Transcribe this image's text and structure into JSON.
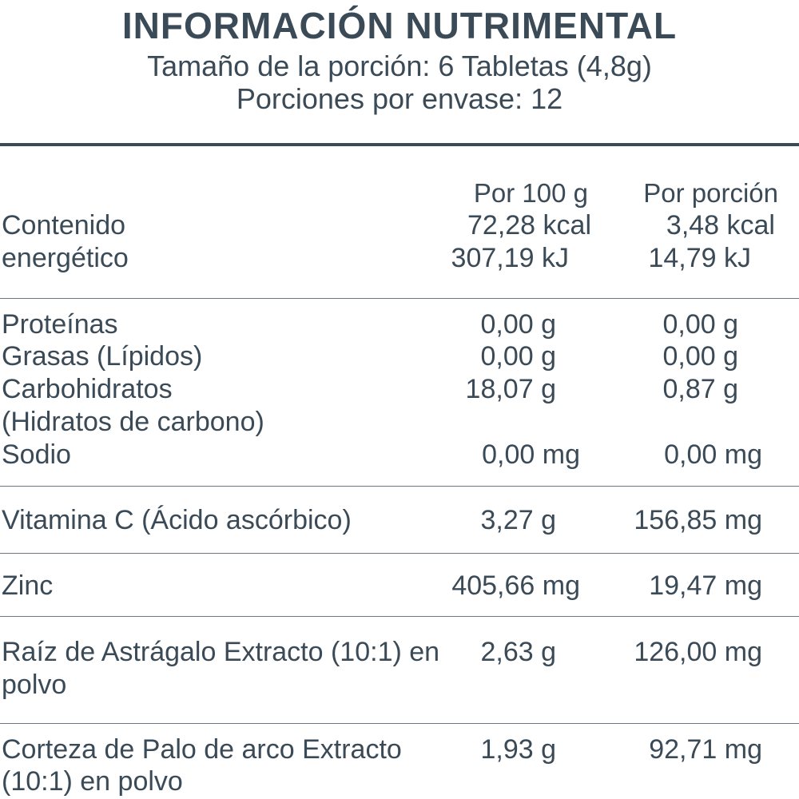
{
  "header": {
    "title": "INFORMACIÓN NUTRIMENTAL",
    "serving_size": "Tamaño de la porción: 6 Tabletas (4,8g)",
    "servings_per_container": "Porciones por envase: 12"
  },
  "columns": {
    "per_100g": "Por 100 g",
    "per_serving": "Por porción"
  },
  "energy": {
    "label_line1": "Contenido",
    "label_line2": "energético",
    "per_100g_kcal": "72,28 kcal",
    "per_100g_kj": "307,19 kJ",
    "per_serving_kcal": "3,48 kcal",
    "per_serving_kj": "14,79 kJ"
  },
  "macros": [
    {
      "label": "Proteínas",
      "per_100g": "0,00 g",
      "per_serving": "0,00 g"
    },
    {
      "label": "Grasas (Lípidos)",
      "per_100g": "0,00 g",
      "per_serving": "0,00 g"
    },
    {
      "label": "Carbohidratos",
      "per_100g": "18,07 g",
      "per_serving": "0,87 g"
    },
    {
      "label": "(Hidratos de carbono)"
    },
    {
      "label": "Sodio",
      "per_100g": "0,00 mg",
      "per_serving": "0,00 mg"
    }
  ],
  "vitamin_c": {
    "label": "Vitamina C (Ácido ascórbico)",
    "per_100g": "3,27 g",
    "per_serving": "156,85 mg"
  },
  "zinc": {
    "label": "Zinc",
    "per_100g": "405,66 mg",
    "per_serving": "19,47 mg"
  },
  "astragalus": {
    "label_line1": "Raíz de Astrágalo Extracto (10:1) en",
    "label_line2": "polvo",
    "per_100g": "2,63 g",
    "per_serving": "126,00 mg"
  },
  "pau_darco": {
    "label_line1": "Corteza de Palo de arco Extracto",
    "label_line2": "(10:1) en polvo",
    "per_100g": "1,93 g",
    "per_serving": "92,71 mg"
  }
}
